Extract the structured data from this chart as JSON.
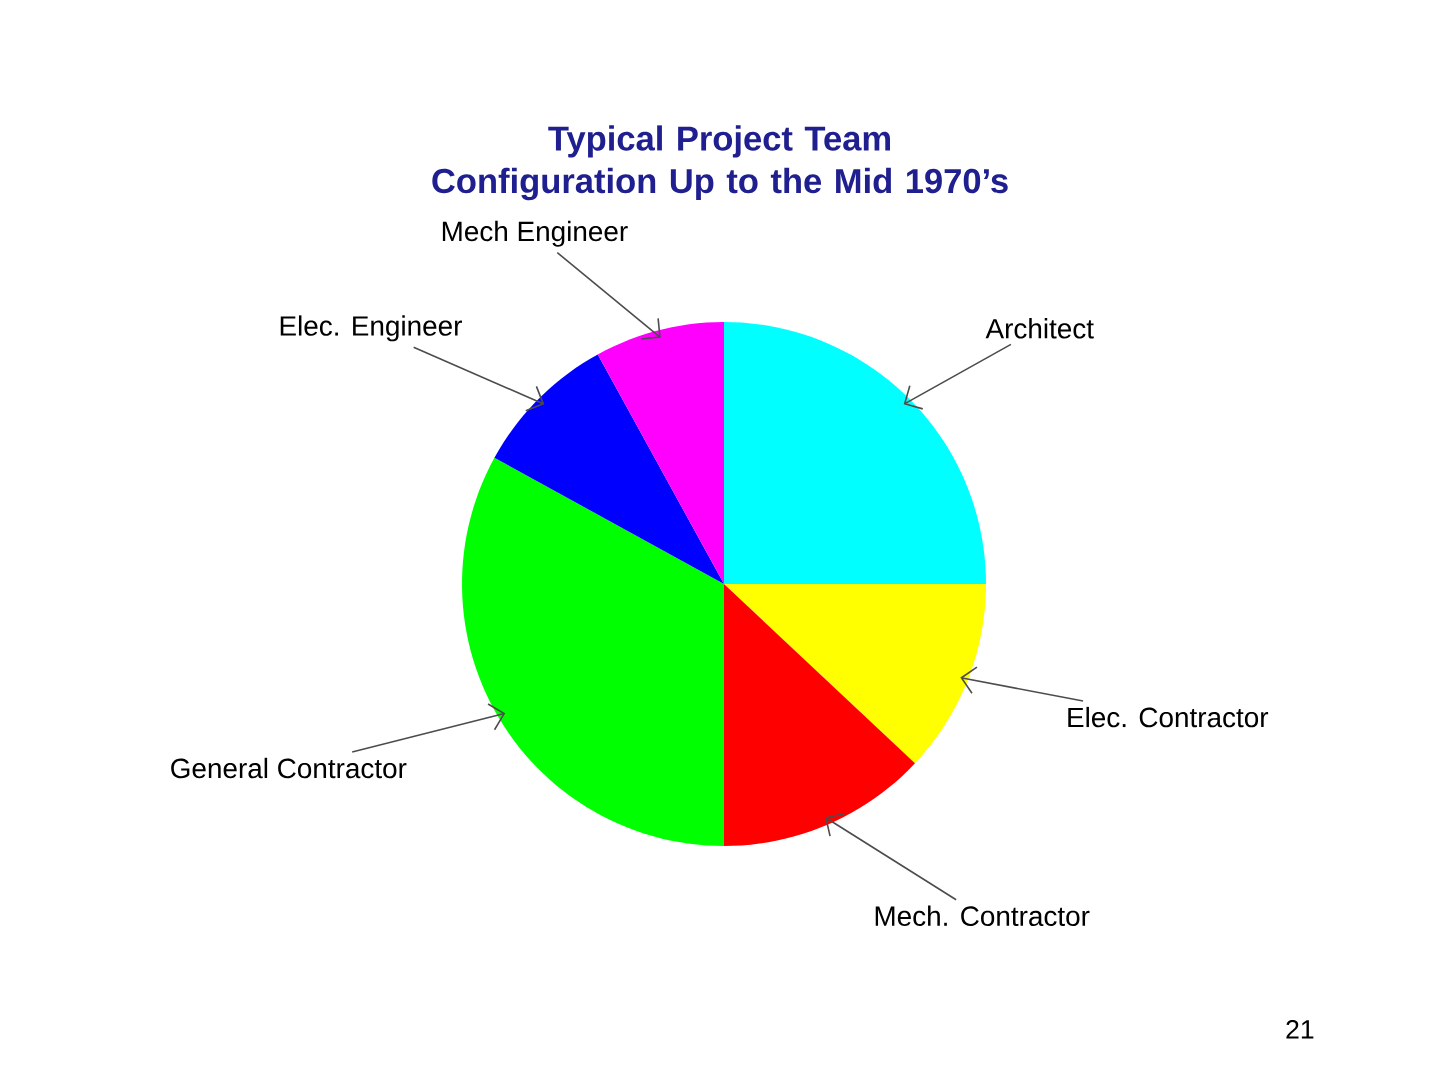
{
  "chart_data": {
    "type": "pie",
    "title": "Typical Project Team Configuration Up to the Mid 1970’s",
    "categories": [
      "Architect",
      "Elec. Contractor",
      "Mech. Contractor",
      "General Contractor",
      "Elec. Engineer",
      "Mech Engineer"
    ],
    "values": [
      25,
      12,
      13,
      33,
      9,
      8
    ],
    "colors": [
      "#00ffff",
      "#ffff00",
      "#ff0000",
      "#00ff00",
      "#0000ff",
      "#ff00ff"
    ],
    "annotations": [
      "21"
    ]
  }
}
